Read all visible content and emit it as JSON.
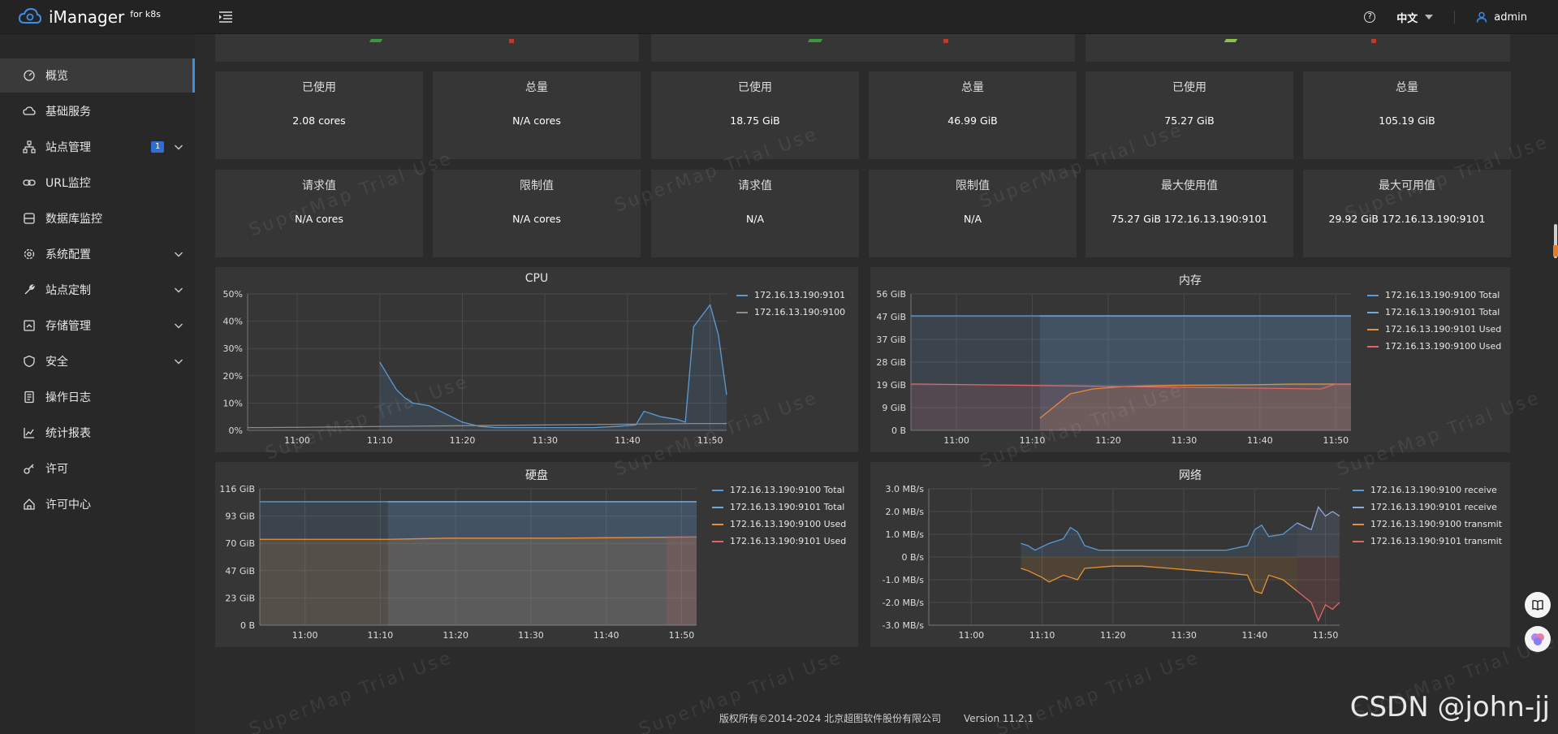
{
  "app": {
    "name": "iManager",
    "subtitle": "for k8s"
  },
  "topbar": {
    "help_icon": "help-icon",
    "language": "中文",
    "user": "admin"
  },
  "sidebar": {
    "items": [
      {
        "label": "概览",
        "icon": "dashboard-icon",
        "active": true
      },
      {
        "label": "基础服务",
        "icon": "cloud-icon"
      },
      {
        "label": "站点管理",
        "icon": "sitemap-icon",
        "badge": "1",
        "expandable": true
      },
      {
        "label": "URL监控",
        "icon": "link-icon"
      },
      {
        "label": "数据库监控",
        "icon": "database-icon"
      },
      {
        "label": "系统配置",
        "icon": "gear-icon",
        "expandable": true
      },
      {
        "label": "站点定制",
        "icon": "wrench-icon",
        "expandable": true
      },
      {
        "label": "存储管理",
        "icon": "storage-icon",
        "expandable": true
      },
      {
        "label": "安全",
        "icon": "shield-icon",
        "expandable": true
      },
      {
        "label": "操作日志",
        "icon": "log-icon"
      },
      {
        "label": "统计报表",
        "icon": "chart-icon"
      },
      {
        "label": "许可",
        "icon": "key-icon"
      },
      {
        "label": "许可中心",
        "icon": "home-license-icon"
      }
    ]
  },
  "stats_row1": [
    {
      "label": "已使用",
      "value": "2.08 cores"
    },
    {
      "label": "总量",
      "value": "N/A cores"
    },
    {
      "label": "已使用",
      "value": "18.75 GiB"
    },
    {
      "label": "总量",
      "value": "46.99 GiB"
    },
    {
      "label": "已使用",
      "value": "75.27 GiB"
    },
    {
      "label": "总量",
      "value": "105.19 GiB"
    }
  ],
  "stats_row2": [
    {
      "label": "请求值",
      "value": "N/A cores"
    },
    {
      "label": "限制值",
      "value": "N/A cores"
    },
    {
      "label": "请求值",
      "value": "N/A"
    },
    {
      "label": "限制值",
      "value": "N/A"
    },
    {
      "label": "最大使用值",
      "value": "75.27 GiB 172.16.13.190:9101"
    },
    {
      "label": "最大可用值",
      "value": "29.92 GiB 172.16.13.190:9101"
    }
  ],
  "watermark": "SuperMap Trial Use",
  "chart_data": [
    {
      "id": "cpu",
      "type": "line",
      "title": "CPU",
      "x_ticks": [
        "11:00",
        "11:10",
        "11:20",
        "11:30",
        "11:40",
        "11:50"
      ],
      "y_ticks": [
        "50%",
        "40%",
        "30%",
        "20%",
        "10%",
        "0%"
      ],
      "ylim": [
        0,
        50
      ],
      "xlim": [
        0,
        58
      ],
      "series": [
        {
          "name": "172.16.13.190:9101",
          "color": "#5b9bd5",
          "fill": true,
          "points": [
            [
              16,
              25
            ],
            [
              17,
              20
            ],
            [
              18,
              15
            ],
            [
              19,
              12
            ],
            [
              20,
              10
            ],
            [
              22,
              9
            ],
            [
              24,
              6
            ],
            [
              26,
              3
            ],
            [
              28,
              1.5
            ],
            [
              30,
              1
            ],
            [
              34,
              1
            ],
            [
              38,
              1
            ],
            [
              42,
              1
            ],
            [
              45,
              1.5
            ],
            [
              47,
              2
            ],
            [
              48,
              7
            ],
            [
              50,
              5
            ],
            [
              52,
              4
            ],
            [
              53,
              3
            ],
            [
              54,
              38
            ],
            [
              55,
              42
            ],
            [
              56,
              46
            ],
            [
              57,
              35
            ],
            [
              58,
              13
            ]
          ]
        },
        {
          "name": "172.16.13.190:9100",
          "color": "#8c8c8c",
          "fill": false,
          "points": [
            [
              0,
              1
            ],
            [
              2,
              1
            ],
            [
              54,
              2.5
            ],
            [
              56,
              2.5
            ],
            [
              58,
              2.5
            ]
          ]
        }
      ]
    },
    {
      "id": "memory",
      "type": "area",
      "title": "内存",
      "x_ticks": [
        "11:00",
        "11:10",
        "11:20",
        "11:30",
        "11:40",
        "11:50"
      ],
      "y_ticks": [
        "56 GiB",
        "47 GiB",
        "37 GiB",
        "28 GiB",
        "19 GiB",
        "9 GiB",
        "0 B"
      ],
      "ylim": [
        0,
        56
      ],
      "xlim": [
        0,
        58
      ],
      "series": [
        {
          "name": "172.16.13.190:9100 Total",
          "color": "#5b9bd5",
          "points": [
            [
              0,
              47
            ],
            [
              1,
              47
            ],
            [
              54,
              47
            ],
            [
              58,
              47
            ]
          ]
        },
        {
          "name": "172.16.13.190:9101 Total",
          "color": "#6fa8dc",
          "points": [
            [
              17,
              47
            ],
            [
              58,
              47
            ]
          ]
        },
        {
          "name": "172.16.13.190:9101 Used",
          "color": "#e69138",
          "points": [
            [
              17,
              5
            ],
            [
              19,
              10
            ],
            [
              21,
              15
            ],
            [
              24,
              17
            ],
            [
              28,
              18
            ],
            [
              35,
              18.5
            ],
            [
              45,
              18.7
            ],
            [
              50,
              19
            ],
            [
              54,
              19
            ],
            [
              58,
              19
            ]
          ]
        },
        {
          "name": "172.16.13.190:9100 Used",
          "color": "#e06666",
          "points": [
            [
              0,
              19
            ],
            [
              1,
              19
            ],
            [
              54,
              17
            ],
            [
              56,
              19
            ],
            [
              58,
              19
            ]
          ]
        }
      ]
    },
    {
      "id": "disk",
      "type": "area",
      "title": "硬盘",
      "x_ticks": [
        "11:00",
        "11:10",
        "11:20",
        "11:30",
        "11:40",
        "11:50"
      ],
      "y_ticks": [
        "116 GiB",
        "93 GiB",
        "70 GiB",
        "47 GiB",
        "23 GiB",
        "0 B"
      ],
      "ylim": [
        0,
        116
      ],
      "xlim": [
        0,
        58
      ],
      "series": [
        {
          "name": "172.16.13.190:9100 Total",
          "color": "#5b9bd5",
          "points": [
            [
              0,
              105
            ],
            [
              1,
              105
            ],
            [
              17,
              105
            ],
            [
              58,
              105
            ]
          ]
        },
        {
          "name": "172.16.13.190:9101 Total",
          "color": "#6fa8dc",
          "points": [
            [
              17,
              105
            ],
            [
              58,
              105
            ]
          ]
        },
        {
          "name": "172.16.13.190:9100 Used",
          "color": "#e69138",
          "points": [
            [
              0,
              73
            ],
            [
              1,
              73
            ],
            [
              17,
              73
            ],
            [
              25,
              74
            ],
            [
              40,
              74
            ],
            [
              58,
              75
            ]
          ]
        },
        {
          "name": "172.16.13.190:9101 Used",
          "color": "#e06666",
          "points": [
            [
              54,
              75
            ],
            [
              58,
              75
            ]
          ]
        }
      ]
    },
    {
      "id": "network",
      "type": "line",
      "title": "网络",
      "x_ticks": [
        "11:00",
        "11:10",
        "11:20",
        "11:30",
        "11:40",
        "11:50"
      ],
      "y_ticks": [
        "3.0 MB/s",
        "2.0 MB/s",
        "1.0 MB/s",
        "0 B/s",
        "-1.0 MB/s",
        "-2.0 MB/s",
        "-3.0 MB/s"
      ],
      "ylim": [
        -3,
        3
      ],
      "xlim": [
        0,
        58
      ],
      "series": [
        {
          "name": "172.16.13.190:9100 receive",
          "color": "#5b9bd5",
          "points": [
            [
              13,
              0.6
            ],
            [
              14,
              0.5
            ],
            [
              15,
              0.3
            ],
            [
              17,
              0.6
            ],
            [
              19,
              0.8
            ],
            [
              20,
              1.3
            ],
            [
              21,
              1.1
            ],
            [
              22,
              0.5
            ],
            [
              24,
              0.3
            ],
            [
              30,
              0.3
            ],
            [
              35,
              0.3
            ],
            [
              38,
              0.3
            ],
            [
              42,
              0.3
            ],
            [
              45,
              0.5
            ],
            [
              46,
              1.2
            ],
            [
              47,
              1.4
            ],
            [
              48,
              0.9
            ],
            [
              50,
              1.0
            ],
            [
              52,
              1.5
            ]
          ]
        },
        {
          "name": "172.16.13.190:9101 receive",
          "color": "#8faadc",
          "points": [
            [
              52,
              1.5
            ],
            [
              54,
              1.2
            ],
            [
              55,
              2.2
            ],
            [
              56,
              1.8
            ],
            [
              57,
              2.0
            ],
            [
              58,
              1.8
            ]
          ]
        },
        {
          "name": "172.16.13.190:9100 transmit",
          "color": "#e69138",
          "points": [
            [
              13,
              -0.5
            ],
            [
              14,
              -0.6
            ],
            [
              16,
              -0.9
            ],
            [
              17,
              -1.1
            ],
            [
              19,
              -0.8
            ],
            [
              21,
              -1.0
            ],
            [
              22,
              -0.5
            ],
            [
              26,
              -0.4
            ],
            [
              30,
              -0.4
            ],
            [
              34,
              -0.5
            ],
            [
              38,
              -0.6
            ],
            [
              42,
              -0.7
            ],
            [
              45,
              -0.8
            ],
            [
              46,
              -1.5
            ],
            [
              47,
              -1.6
            ],
            [
              48,
              -0.8
            ],
            [
              50,
              -1.0
            ],
            [
              52,
              -1.5
            ]
          ]
        },
        {
          "name": "172.16.13.190:9101 transmit",
          "color": "#e06666",
          "points": [
            [
              52,
              -1.5
            ],
            [
              54,
              -2.0
            ],
            [
              55,
              -2.8
            ],
            [
              56,
              -2.1
            ],
            [
              57,
              -2.3
            ],
            [
              58,
              -2.0
            ]
          ]
        }
      ]
    }
  ],
  "footer": {
    "copyright": "版权所有©2014-2024 北京超图软件股份有限公司",
    "version": "Version 11.2.1"
  },
  "corner_text": "CSDN @john-jj"
}
